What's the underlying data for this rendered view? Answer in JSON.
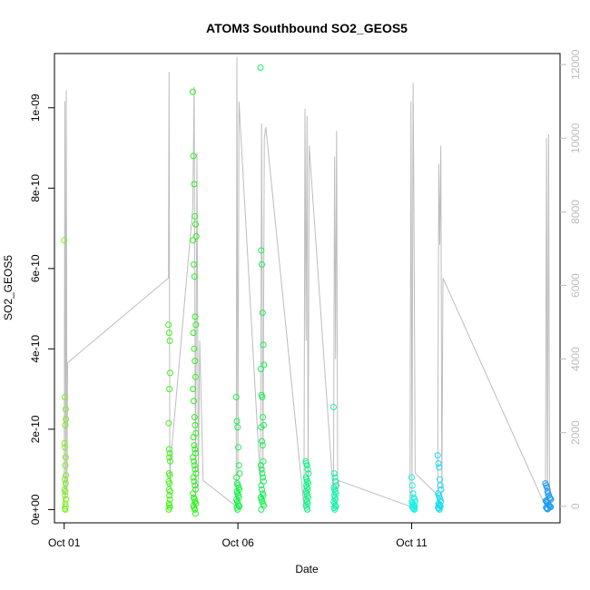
{
  "chart_data": {
    "type": "scatter",
    "title": "ATOM3 Southbound SO2_GEOS5",
    "xlabel": "Date",
    "ylabel": "SO2_GEOS5",
    "x_ticks": [
      "Oct 01",
      "Oct 06",
      "Oct 11"
    ],
    "y_ticks": [
      "0e+00",
      "2e-10",
      "4e-10",
      "6e-10",
      "8e-10",
      "1e-09"
    ],
    "y_ticks_right": [
      "0",
      "2000",
      "4000",
      "6000",
      "8000",
      "10000",
      "12000"
    ],
    "xlim": [
      -0.28,
      14.27
    ],
    "ylim": [
      -3.3e-11,
      1.135e-09
    ],
    "y2lim": [
      -450,
      12300
    ],
    "colors": {
      "flight_track": "#bdbdbd",
      "axis": "#000000",
      "right_axis": "#bdbdbd"
    },
    "series": [
      {
        "role": "points",
        "color": "#7cf01c",
        "x": [
          0.0,
          0.02,
          0.04,
          0.05,
          0.03,
          0.01,
          0.02,
          0.04,
          0.03,
          0.05,
          0.02,
          0.04,
          0.01,
          0.03,
          0.02,
          0.05,
          0.03,
          0.04,
          0.02,
          0.03
        ],
        "y": [
          6.7e-10,
          2.8e-10,
          2.5e-10,
          2.25e-10,
          2.1e-10,
          1.65e-10,
          1.55e-10,
          1.3e-10,
          1.1e-10,
          8.5e-11,
          7.5e-11,
          6.5e-11,
          5e-11,
          4.5e-11,
          3.5e-11,
          2.5e-11,
          1.5e-11,
          8e-12,
          3e-12,
          0.0
        ]
      },
      {
        "role": "points",
        "color": "#46f01c",
        "x": [
          3.0,
          3.02,
          3.04,
          3.05,
          3.03,
          3.01,
          3.02,
          3.04,
          3.03,
          3.05,
          3.02,
          3.04,
          3.01,
          3.03,
          3.02,
          3.05,
          3.03,
          3.04,
          3.02,
          3.03,
          3.04,
          3.01
        ],
        "y": [
          4.6e-10,
          4.4e-10,
          4.2e-10,
          3.4e-10,
          3e-10,
          2.15e-10,
          1.5e-10,
          1.4e-10,
          1.3e-10,
          1.2e-10,
          9e-11,
          8.5e-11,
          7e-11,
          6.5e-11,
          5e-11,
          4.5e-11,
          3.5e-11,
          2.5e-11,
          1.5e-11,
          1e-11,
          5e-12,
          0.0
        ]
      },
      {
        "role": "points",
        "color": "#2cf01c",
        "x": [
          3.7,
          3.72,
          3.74,
          3.76,
          3.78,
          3.8,
          3.71,
          3.73,
          3.75,
          3.77,
          3.79,
          3.72,
          3.74,
          3.76,
          3.78,
          3.71,
          3.73,
          3.75,
          3.77,
          3.79,
          3.72,
          3.74,
          3.76,
          3.78,
          3.71,
          3.73,
          3.75,
          3.77,
          3.79,
          3.72,
          3.74,
          3.76,
          3.78,
          3.71,
          3.73,
          3.75,
          3.77,
          3.79,
          3.72,
          3.74,
          3.76,
          3.78
        ],
        "y": [
          1.04e-09,
          8.8e-10,
          8.1e-10,
          7.3e-10,
          7.1e-10,
          6.8e-10,
          6.7e-10,
          6.1e-10,
          5.8e-10,
          4.8e-10,
          4.6e-10,
          4.4e-10,
          4e-10,
          3.7e-10,
          3.3e-10,
          3e-10,
          2.7e-10,
          2.3e-10,
          2.1e-10,
          1.9e-10,
          1.8e-10,
          1.6e-10,
          1.5e-10,
          1.4e-10,
          1.3e-10,
          1.2e-10,
          1.1e-10,
          1e-10,
          9e-11,
          8e-11,
          7e-11,
          6e-11,
          5e-11,
          4e-11,
          3e-11,
          2.5e-11,
          2e-11,
          1.5e-11,
          1e-11,
          5e-12,
          0.0,
          -1e-11
        ]
      },
      {
        "role": "points",
        "color": "#1cf04a",
        "x": [
          4.95,
          4.97,
          4.99,
          5.01,
          5.03,
          5.05,
          4.96,
          4.98,
          5.0,
          5.02,
          5.04,
          4.97,
          4.99,
          5.01,
          5.03,
          4.96,
          4.98,
          5.0,
          5.02,
          5.04,
          4.97,
          4.99
        ],
        "y": [
          2.8e-10,
          2.2e-10,
          2.05e-10,
          1.55e-10,
          1.1e-10,
          9e-11,
          8e-11,
          6.5e-11,
          6e-11,
          5.5e-11,
          5e-11,
          4.5e-11,
          4e-11,
          3.5e-11,
          3e-11,
          2.5e-11,
          2e-11,
          1.5e-11,
          1e-11,
          8e-12,
          5e-12,
          0.0
        ]
      },
      {
        "role": "points",
        "color": "#1cf05a",
        "x": [
          5.65,
          5.67,
          5.69,
          5.71,
          5.73,
          5.75,
          5.66,
          5.68,
          5.7,
          5.72,
          5.74,
          5.67,
          5.69,
          5.71,
          5.73,
          5.66,
          5.68,
          5.7,
          5.72,
          5.74,
          5.67,
          5.69,
          5.71,
          5.73,
          5.66,
          5.68,
          5.7,
          5.72,
          5.74,
          5.67
        ],
        "y": [
          1.1e-09,
          6.45e-10,
          6.1e-10,
          4.9e-10,
          4.1e-10,
          3.6e-10,
          3.5e-10,
          2.85e-10,
          2.8e-10,
          2.3e-10,
          2.1e-10,
          2.05e-10,
          1.7e-10,
          1.6e-10,
          1.2e-10,
          1.1e-10,
          1e-10,
          9e-11,
          8e-11,
          7e-11,
          6e-11,
          5e-11,
          4e-11,
          3.5e-11,
          3e-11,
          2.5e-11,
          2e-11,
          1.5e-11,
          1e-11,
          0.0
        ]
      },
      {
        "role": "points",
        "color": "#1cf08a",
        "x": [
          6.95,
          6.97,
          6.99,
          7.01,
          7.03,
          6.96,
          6.98,
          7.0,
          7.02,
          6.97,
          6.99,
          7.01,
          6.96,
          6.98,
          7.0,
          7.02,
          6.97,
          6.99,
          7.01,
          6.96,
          6.98,
          7.0
        ],
        "y": [
          1.2e-10,
          1.15e-10,
          1.1e-10,
          1e-10,
          9e-11,
          8e-11,
          7.5e-11,
          7e-11,
          6.5e-11,
          6e-11,
          5.5e-11,
          5e-11,
          4.5e-11,
          4e-11,
          3.5e-11,
          3e-11,
          2.5e-11,
          2e-11,
          1.5e-11,
          1e-11,
          5e-12,
          0.0
        ]
      },
      {
        "role": "points",
        "color": "#1cf0a6",
        "x": [
          7.75,
          7.77,
          7.79,
          7.81,
          7.83,
          7.76,
          7.78,
          7.8,
          7.82,
          7.77,
          7.79,
          7.81,
          7.76,
          7.78,
          7.8,
          7.82,
          7.77,
          7.79
        ],
        "y": [
          2.55e-10,
          9e-11,
          8e-11,
          7e-11,
          6e-11,
          5.5e-11,
          5e-11,
          4.5e-11,
          4e-11,
          3.5e-11,
          3e-11,
          2.5e-11,
          2e-11,
          1.5e-11,
          1e-11,
          7e-12,
          4e-12,
          0.0
        ]
      },
      {
        "role": "points",
        "color": "#1cf0e4",
        "x": [
          10.0,
          10.02,
          10.04,
          10.06,
          10.08,
          10.1,
          10.01,
          10.03,
          10.05,
          10.07,
          10.09,
          10.02,
          10.04,
          10.06,
          10.08
        ],
        "y": [
          8e-11,
          6e-11,
          4e-11,
          3e-11,
          2.5e-11,
          2e-11,
          1.8e-11,
          1.5e-11,
          1.2e-11,
          1e-11,
          8e-12,
          6e-12,
          4e-12,
          2e-12,
          0.0
        ]
      },
      {
        "role": "points",
        "color": "#1cdcf0",
        "x": [
          10.75,
          10.77,
          10.79,
          10.81,
          10.83,
          10.85,
          10.76,
          10.78,
          10.8,
          10.82,
          10.84,
          10.77,
          10.79,
          10.81,
          10.83,
          10.76,
          10.78,
          10.8
        ],
        "y": [
          1.35e-10,
          1.15e-10,
          1.05e-10,
          7.5e-11,
          6e-11,
          5e-11,
          4e-11,
          3.5e-11,
          3e-11,
          2.5e-11,
          2e-11,
          1.5e-11,
          1.2e-11,
          1e-11,
          8e-12,
          5e-12,
          3e-12,
          0.0
        ]
      },
      {
        "role": "points",
        "color": "#1c9cf0",
        "x": [
          13.85,
          13.87,
          13.89,
          13.91,
          13.93,
          13.95,
          13.97,
          13.99,
          14.01,
          13.86,
          13.88,
          13.9,
          13.92,
          13.94,
          13.96,
          13.98,
          14.0,
          13.87,
          13.89,
          13.91
        ],
        "y": [
          6.5e-11,
          6e-11,
          5.5e-11,
          4.5e-11,
          4e-11,
          3.5e-11,
          3e-11,
          2.8e-11,
          2.5e-11,
          2.2e-11,
          2e-11,
          1.8e-11,
          1.5e-11,
          1.2e-11,
          1e-11,
          8e-12,
          6e-12,
          5e-12,
          3e-12,
          1e-12
        ]
      },
      {
        "role": "flight_track",
        "axis": "right",
        "color": "#bdbdbd",
        "x": [
          0.0,
          0.02,
          0.04,
          0.06,
          0.08,
          0.1,
          3.0,
          3.02,
          3.04,
          3.06,
          3.7,
          3.74,
          3.78,
          3.82,
          3.86,
          3.9,
          4.0,
          4.95,
          4.97,
          5.0,
          5.03,
          5.06,
          5.65,
          5.68,
          5.72,
          5.76,
          5.8,
          6.9,
          6.93,
          6.96,
          6.99,
          7.02,
          7.05,
          7.75,
          7.78,
          7.81,
          7.84,
          7.87,
          7.9,
          9.95,
          9.98,
          10.01,
          10.04,
          10.07,
          10.1,
          10.75,
          10.78,
          10.81,
          10.84,
          10.87,
          10.9,
          13.85,
          13.88,
          13.91,
          13.94,
          13.97,
          14.0
        ],
        "y": [
          0,
          11000,
          200,
          11300,
          400,
          3900,
          6200,
          11800,
          500,
          1200,
          8100,
          11400,
          300,
          9600,
          500,
          4500,
          700,
          0,
          12200,
          800,
          11000,
          10500,
          600,
          10400,
          900,
          10000,
          10300,
          0,
          10800,
          4500,
          10600,
          600,
          9800,
          300,
          9500,
          4000,
          10200,
          400,
          700,
          0,
          11000,
          200,
          11500,
          7400,
          900,
          300,
          9300,
          7100,
          9800,
          200,
          6200,
          0,
          10000,
          400,
          10100,
          300,
          500
        ]
      }
    ]
  }
}
